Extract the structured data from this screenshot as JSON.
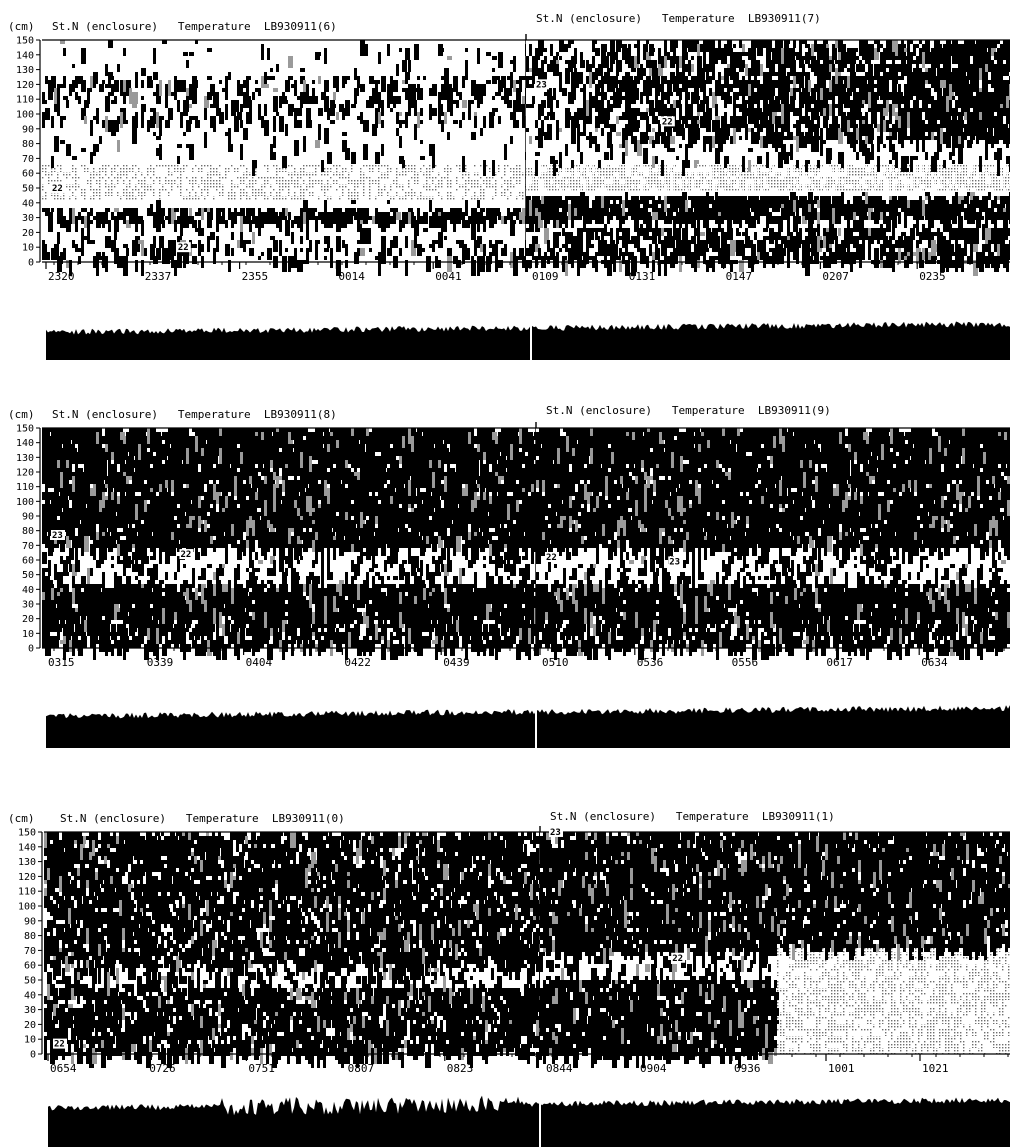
{
  "figure": {
    "unit_label": "(cm)",
    "y_ticks": [
      0,
      10,
      20,
      30,
      40,
      50,
      60,
      70,
      80,
      90,
      100,
      110,
      120,
      130,
      140,
      150
    ],
    "ink_color": "#000000",
    "paper_color": "#ffffff",
    "shade_color": "#9a9a9a"
  },
  "chart_data": [
    {
      "type": "heatmap",
      "title": "St.N (enclosure)   Temperature  LB930911(6)",
      "ylim": [
        0,
        150
      ],
      "x_ticks": [
        "2320",
        "2337",
        "2355",
        "0014",
        "0041"
      ],
      "annotations": [
        {
          "text": "22",
          "y": 48
        },
        {
          "text": "22",
          "y": 8
        }
      ],
      "style": "sparse"
    },
    {
      "type": "heatmap",
      "title": "St.N (enclosure)   Temperature  LB930911(7)",
      "ylim": [
        0,
        150
      ],
      "x_ticks": [
        "0109",
        "0131",
        "0147",
        "0207",
        "0235"
      ],
      "annotations": [
        {
          "text": "23",
          "y": 118
        },
        {
          "text": "22",
          "y": 93
        }
      ],
      "style": "upper"
    },
    {
      "type": "heatmap",
      "title": "St.N (enclosure)   Temperature  LB930911(8)",
      "ylim": [
        0,
        150
      ],
      "x_ticks": [
        "0315",
        "0339",
        "0404",
        "0422",
        "0439"
      ],
      "annotations": [
        {
          "text": "23",
          "y": 75
        },
        {
          "text": "22",
          "y": 62
        }
      ],
      "style": "dense"
    },
    {
      "type": "heatmap",
      "title": "St.N (enclosure)   Temperature  LB930911(9)",
      "ylim": [
        0,
        150
      ],
      "x_ticks": [
        "0510",
        "0536",
        "0556",
        "0617",
        "0634"
      ],
      "annotations": [
        {
          "text": "22",
          "y": 60
        },
        {
          "text": "23",
          "y": 57
        }
      ],
      "style": "dense"
    },
    {
      "type": "heatmap",
      "title": "St.N (enclosure)   Temperature  LB930911(0)",
      "ylim": [
        0,
        150
      ],
      "x_ticks": [
        "0654",
        "0726",
        "0751",
        "0807",
        "0823"
      ],
      "annotations": [
        {
          "text": "22",
          "y": 5
        }
      ],
      "style": "striped"
    },
    {
      "type": "heatmap",
      "title": "St.N (enclosure)   Temperature  LB930911(1)",
      "ylim": [
        0,
        150
      ],
      "x_ticks": [
        "0844",
        "0904",
        "0936",
        "1001",
        "1021"
      ],
      "annotations": [
        {
          "text": "23",
          "y": 148
        },
        {
          "text": "22",
          "y": 63
        }
      ],
      "style": "mixed"
    }
  ]
}
